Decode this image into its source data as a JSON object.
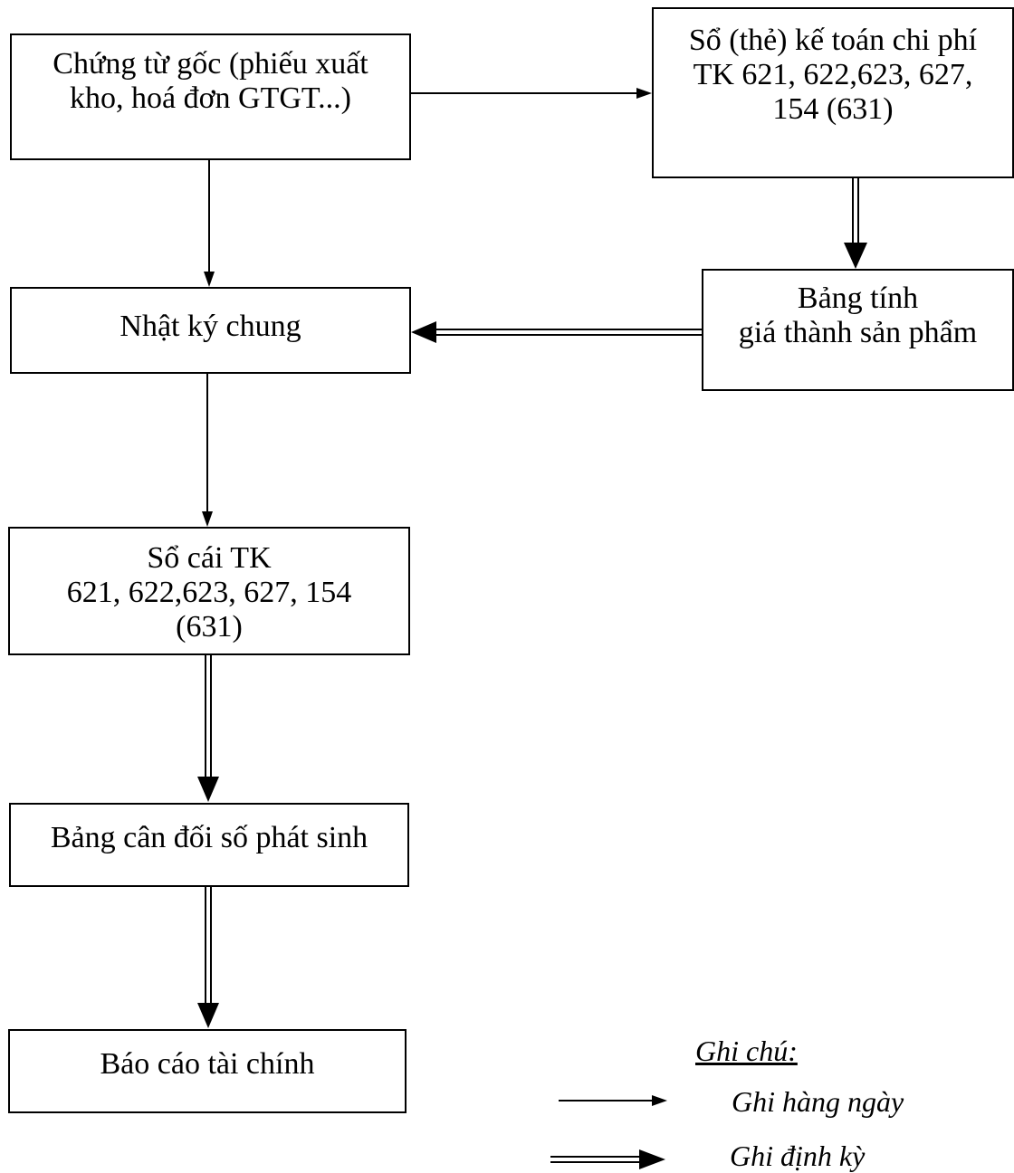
{
  "boxes": {
    "source_docs": {
      "lines": [
        "Chứng từ gốc (phiếu xuất",
        "kho, hoá đơn GTGT...)"
      ]
    },
    "cost_ledger": {
      "lines": [
        "Sổ (thẻ) kế toán chi phí",
        "TK 621, 622,623, 627,",
        "154 (631)"
      ]
    },
    "costing_table": {
      "lines": [
        "Bảng tính",
        "giá thành sản phẩm"
      ]
    },
    "general_journal": {
      "lines": [
        "Nhật ký chung"
      ]
    },
    "general_ledger": {
      "lines": [
        "Sổ cái TK",
        "621, 622,623, 627, 154",
        "(631)"
      ]
    },
    "trial_balance": {
      "lines": [
        "Bảng cân đối số phát sinh"
      ]
    },
    "financial_report": {
      "lines": [
        "Báo cáo tài chính"
      ]
    }
  },
  "legend": {
    "title": "Ghi chú:",
    "daily_label": "Ghi hàng ngày",
    "periodic_label": "Ghi định kỳ"
  },
  "colors": {
    "line": "#000000",
    "background": "#ffffff"
  }
}
